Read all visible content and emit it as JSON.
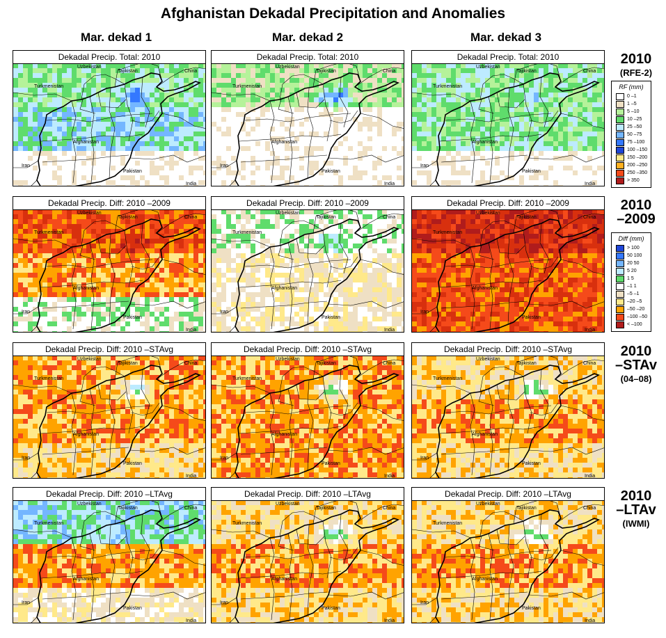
{
  "title": "Afghanistan Dekadal Precipitation and Anomalies",
  "columns": [
    "Mar. dekad 1",
    "Mar. dekad 2",
    "Mar. dekad 3"
  ],
  "rows": [
    {
      "big": [
        "2010",
        "(RFE-2)"
      ],
      "panel_title": "Dekadal Precip. Total: 2010",
      "palette": "rf",
      "intensity": [
        {
          "north": 3,
          "center": 4,
          "south": 0,
          "hot": 6
        },
        {
          "north": 2,
          "center": 0,
          "south": 0,
          "hot": 6
        },
        {
          "north": 3,
          "center": 3,
          "south": 0,
          "hot": 4
        }
      ]
    },
    {
      "big": [
        "2010",
        "–2009"
      ],
      "panel_title": "Dekadal Precip. Diff:  2010 –2009",
      "palette": "diff",
      "intensity": [
        {
          "north": 9,
          "center": 8,
          "south": 5,
          "hot": 10
        },
        {
          "north": 5,
          "center": 6,
          "south": 6,
          "hot": 3
        },
        {
          "north": 10,
          "center": 9,
          "south": 9,
          "hot": 11
        }
      ]
    },
    {
      "big": [
        "2010",
        "–STAv",
        "(04–08)"
      ],
      "panel_title": "Dekadal Precip. Diff:  2010 –STAvg",
      "palette": "diff",
      "intensity": [
        {
          "north": 8,
          "center": 8,
          "south": 7,
          "hot": 3
        },
        {
          "north": 8,
          "center": 8,
          "south": 8,
          "hot": 3
        },
        {
          "north": 7,
          "center": 8,
          "south": 7,
          "hot": 3
        }
      ]
    },
    {
      "big": [
        "2010",
        "–LTAv",
        "(IWMI)"
      ],
      "panel_title": "Dekadal Precip. Diff:  2010 –LTAvg",
      "palette": "diff",
      "intensity": [
        {
          "north": 3,
          "center": 8,
          "south": 6,
          "hot": 3
        },
        {
          "north": 7,
          "center": 8,
          "south": 7,
          "hot": 3
        },
        {
          "north": 7,
          "center": 8,
          "south": 7,
          "hot": 3
        }
      ]
    }
  ],
  "place_labels": [
    "Uzbekistan",
    "Tajikistan",
    "China",
    "Turkmenistan",
    "Afghanistan",
    "Iran",
    "Pakistan",
    "India"
  ],
  "legend_rf": {
    "title": "RF (mm)",
    "items": [
      {
        "label": "0 –1",
        "color": "#ffffff"
      },
      {
        "label": "1 –5",
        "color": "#efe0c4"
      },
      {
        "label": "5 –10",
        "color": "#b5f29a"
      },
      {
        "label": "10 –25",
        "color": "#5fdc6c"
      },
      {
        "label": "25 –50",
        "color": "#bdebff"
      },
      {
        "label": "50 –75",
        "color": "#74b6ff"
      },
      {
        "label": "75 –100",
        "color": "#3478ff"
      },
      {
        "label": "100 –150",
        "color": "#1f46d8"
      },
      {
        "label": "150 –200",
        "color": "#ffe98a"
      },
      {
        "label": "200 –250",
        "color": "#ffb020"
      },
      {
        "label": "250 –350",
        "color": "#f54a1a"
      },
      {
        "label": "> 350",
        "color": "#b01c1c"
      }
    ]
  },
  "legend_diff": {
    "title": "Diff (mm)",
    "items": [
      {
        "label": "> 100",
        "color": "#1f46d8"
      },
      {
        "label": " 50  100",
        "color": "#3478ff"
      },
      {
        "label": " 20  50",
        "color": "#74b6ff"
      },
      {
        "label": "  5  20",
        "color": "#bdebff"
      },
      {
        "label": "  1   5",
        "color": "#5fdc6c"
      },
      {
        "label": " –1   1",
        "color": "#ffffff"
      },
      {
        "label": " –5  –1",
        "color": "#efe0c4"
      },
      {
        "label": "–20  –5",
        "color": "#ffe98a"
      },
      {
        "label": "–50 –20",
        "color": "#ffa300"
      },
      {
        "label": "–100 –50",
        "color": "#f54a1a"
      },
      {
        "label": "< –100",
        "color": "#b01c1c"
      }
    ]
  },
  "colors": {
    "rf": [
      "#ffffff",
      "#efe0c4",
      "#b5f29a",
      "#5fdc6c",
      "#bdebff",
      "#74b6ff",
      "#3478ff",
      "#1f46d8"
    ],
    "diff": [
      "#1f46d8",
      "#3478ff",
      "#74b6ff",
      "#bdebff",
      "#5fdc6c",
      "#ffffff",
      "#efe0c4",
      "#ffe98a",
      "#ffa300",
      "#f54a1a",
      "#d8300e",
      "#b01c1c"
    ]
  }
}
